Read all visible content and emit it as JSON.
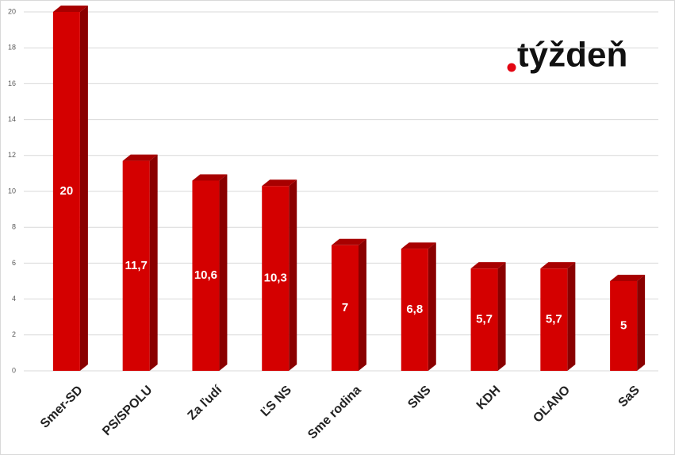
{
  "chart_data": {
    "type": "bar",
    "logo": "týždeň",
    "categories": [
      "Smer-SD",
      "PS/SPOLU",
      "Za ľudí",
      "ĽS NS",
      "Sme rodina",
      "SNS",
      "KDH",
      "OĽANO",
      "SaS"
    ],
    "values": [
      20,
      11.7,
      10.6,
      10.3,
      7,
      6.8,
      5.7,
      5.7,
      5
    ],
    "value_labels": [
      "20",
      "11,7",
      "10,6",
      "10,3",
      "7",
      "6,8",
      "5,7",
      "5,7",
      "5"
    ],
    "color": "#d40000",
    "ylim": [
      0,
      20
    ],
    "yticks": [
      0,
      2,
      4,
      6,
      8,
      10,
      12,
      14,
      16,
      18,
      20
    ],
    "grid": true
  }
}
